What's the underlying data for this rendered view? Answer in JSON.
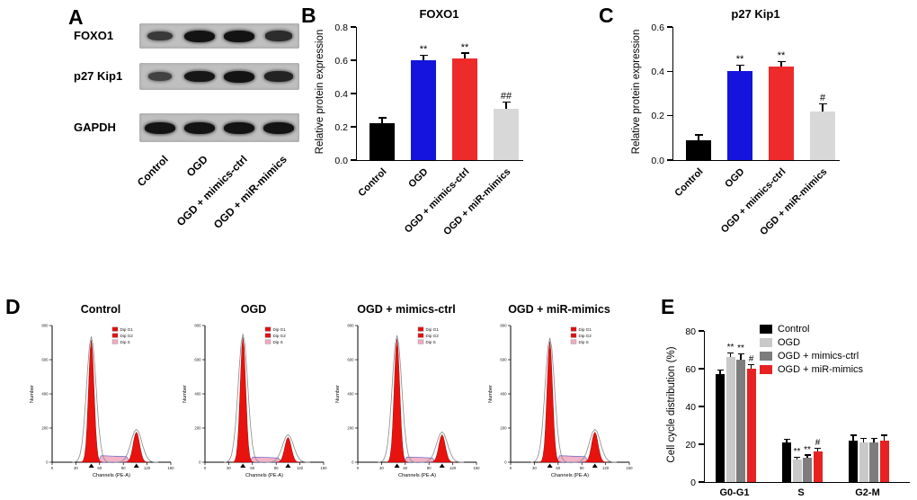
{
  "panels": {
    "A": {
      "letter": "A",
      "blot": {
        "rows": [
          {
            "label": "FOXO1",
            "band_intensities": [
              0.55,
              1.0,
              1.0,
              0.7
            ]
          },
          {
            "label": "p27 Kip1",
            "band_intensities": [
              0.45,
              0.95,
              1.0,
              0.8
            ]
          },
          {
            "label": "GAPDH",
            "band_intensities": [
              1.0,
              1.0,
              1.0,
              1.0
            ]
          }
        ],
        "lane_labels": [
          "Control",
          "OGD",
          "OGD + mimics-ctrl",
          "OGD + miR-mimics"
        ]
      }
    },
    "B": {
      "letter": "B"
    },
    "C": {
      "letter": "C"
    },
    "D": {
      "letter": "D"
    },
    "E": {
      "letter": "E"
    }
  },
  "chart_data": [
    {
      "panel": "B",
      "type": "bar",
      "title": "FOXO1",
      "ylabel": "Relative protein expression",
      "categories": [
        "Control",
        "OGD",
        "OGD + mimics-ctrl",
        "OGD + miR-mimics"
      ],
      "values": [
        0.22,
        0.6,
        0.61,
        0.31
      ],
      "errors": [
        0.03,
        0.025,
        0.03,
        0.035
      ],
      "sig_labels": [
        "",
        "**",
        "**",
        "##"
      ],
      "bar_colors": [
        "#000000",
        "#1414dc",
        "#ee2b2b",
        "#d8d8d8"
      ],
      "ylim": [
        0,
        0.8
      ],
      "yticks": [
        "0.0",
        "0.2",
        "0.4",
        "0.6",
        "0.8"
      ]
    },
    {
      "panel": "C",
      "type": "bar",
      "title": "p27 Kip1",
      "ylabel": "Relative protein expression",
      "categories": [
        "Control",
        "OGD",
        "OGD + mimics-ctrl",
        "OGD + miR-mimics"
      ],
      "values": [
        0.09,
        0.4,
        0.42,
        0.22
      ],
      "errors": [
        0.02,
        0.025,
        0.02,
        0.03
      ],
      "sig_labels": [
        "",
        "**",
        "**",
        "#"
      ],
      "bar_colors": [
        "#000000",
        "#1414dc",
        "#ee2b2b",
        "#d8d8d8"
      ],
      "ylim": [
        0,
        0.6
      ],
      "yticks": [
        "0.0",
        "0.2",
        "0.4",
        "0.6"
      ]
    },
    {
      "panel": "D",
      "type": "flow-histogram",
      "titles": [
        "Control",
        "OGD",
        "OGD + mimics-ctrl",
        "OGD + miR-mimics"
      ],
      "xlabel": "Channels (PE-A)",
      "ylabel": "Number",
      "legend": [
        {
          "label": "Dip G1",
          "color": "#e01111"
        },
        {
          "label": "Dip G2",
          "color": "#e01111"
        },
        {
          "label": "Dip S",
          "color": "#f2aac2"
        }
      ],
      "xticks": [
        "0",
        "30",
        "60",
        "90",
        "120",
        "150"
      ],
      "yticks": [
        "0",
        "200",
        "400",
        "600",
        "800"
      ],
      "plots": [
        {
          "g1_pos": 0.33,
          "g1_height": 0.93,
          "g2_pos": 0.71,
          "g2_height": 0.23,
          "s_height": 0.05
        },
        {
          "g1_pos": 0.32,
          "g1_height": 0.95,
          "g2_pos": 0.7,
          "g2_height": 0.19,
          "s_height": 0.04
        },
        {
          "g1_pos": 0.33,
          "g1_height": 0.94,
          "g2_pos": 0.71,
          "g2_height": 0.21,
          "s_height": 0.04
        },
        {
          "g1_pos": 0.33,
          "g1_height": 0.92,
          "g2_pos": 0.71,
          "g2_height": 0.23,
          "s_height": 0.05
        }
      ]
    },
    {
      "panel": "E",
      "type": "grouped-bar",
      "ylabel": "Cell cycle distribution (%)",
      "groups": [
        "G0-G1",
        "S",
        "G2-M"
      ],
      "series": [
        {
          "name": "Control",
          "color": "#000000",
          "values": [
            57,
            21,
            22
          ],
          "errors": [
            2,
            1.5,
            2.5
          ],
          "sig": [
            "",
            "",
            ""
          ]
        },
        {
          "name": "OGD",
          "color": "#c9c9c9",
          "values": [
            66,
            12,
            21
          ],
          "errors": [
            2,
            1,
            2
          ],
          "sig": [
            "**",
            "**",
            ""
          ]
        },
        {
          "name": "OGD + mimics-ctrl",
          "color": "#7d7d7d",
          "values": [
            65,
            13,
            21
          ],
          "errors": [
            2.5,
            1,
            2
          ],
          "sig": [
            "**",
            "**",
            ""
          ]
        },
        {
          "name": "OGD + miR-mimics",
          "color": "#e62222",
          "values": [
            60,
            16,
            22
          ],
          "errors": [
            2,
            1.5,
            2.5
          ],
          "sig": [
            "#",
            "#",
            ""
          ]
        }
      ],
      "ylim": [
        0,
        80
      ],
      "yticks": [
        "0",
        "20",
        "40",
        "60",
        "80"
      ]
    }
  ]
}
